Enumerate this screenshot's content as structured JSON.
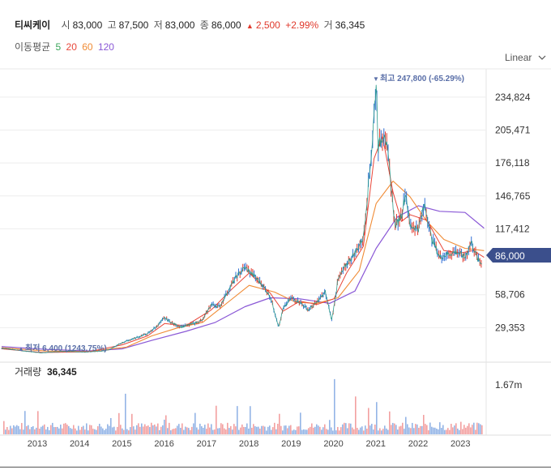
{
  "header": {
    "name": "티씨케이",
    "open_label": "시",
    "open": "83,000",
    "high_label": "고",
    "high": "87,500",
    "low_label": "저",
    "low": "83,000",
    "close_label": "종",
    "close": "86,000",
    "change_arrow": "▲",
    "change": "2,500",
    "change_pct": "+2.99%",
    "volume_label": "거",
    "volume": "36,345",
    "ma_label": "이동평균",
    "ma": [
      {
        "period": "5",
        "color": "#3aa55a"
      },
      {
        "period": "20",
        "color": "#e8473a"
      },
      {
        "period": "60",
        "color": "#f08b35"
      },
      {
        "period": "120",
        "color": "#8a58d6"
      }
    ],
    "scale_mode": "Linear",
    "scale_icon": "chevron-down-icon"
  },
  "chart_data": {
    "type": "candlestick-line",
    "price_axis": {
      "ticks": [
        234824,
        205471,
        176118,
        146765,
        117412,
        58706,
        29353
      ],
      "ylim": [
        0,
        260000
      ]
    },
    "current_price_label": "86,000",
    "current_price": 86000,
    "max_marker": {
      "arrow": "▼",
      "text": "최고 247,800 (-65.29%)",
      "value": 247800,
      "x": 2021.3
    },
    "min_marker": {
      "arrow": "▲",
      "text": "최저 6,400 (1243.75%)",
      "value": 6400,
      "x": 2013.4
    },
    "x_range": [
      2012.45,
      2023.9
    ],
    "x_ticks": [
      "2013",
      "2014",
      "2015",
      "2016",
      "2017",
      "2018",
      "2019",
      "2020",
      "2021",
      "2022",
      "2023"
    ],
    "price_series": [
      [
        2012.45,
        11000
      ],
      [
        2012.7,
        10000
      ],
      [
        2013.0,
        8500
      ],
      [
        2013.4,
        6800
      ],
      [
        2013.7,
        7800
      ],
      [
        2014.0,
        8200
      ],
      [
        2014.4,
        7600
      ],
      [
        2014.8,
        8400
      ],
      [
        2015.0,
        9800
      ],
      [
        2015.3,
        16000
      ],
      [
        2015.6,
        20000
      ],
      [
        2015.9,
        24000
      ],
      [
        2016.1,
        30000
      ],
      [
        2016.3,
        38000
      ],
      [
        2016.5,
        33000
      ],
      [
        2016.7,
        30000
      ],
      [
        2016.9,
        32000
      ],
      [
        2017.2,
        36000
      ],
      [
        2017.4,
        50000
      ],
      [
        2017.6,
        48000
      ],
      [
        2017.8,
        62000
      ],
      [
        2018.0,
        75000
      ],
      [
        2018.2,
        83000
      ],
      [
        2018.4,
        76000
      ],
      [
        2018.6,
        68000
      ],
      [
        2018.8,
        57000
      ],
      [
        2019.0,
        30000
      ],
      [
        2019.1,
        46000
      ],
      [
        2019.3,
        56000
      ],
      [
        2019.5,
        52000
      ],
      [
        2019.7,
        45000
      ],
      [
        2019.9,
        52000
      ],
      [
        2020.1,
        61000
      ],
      [
        2020.25,
        36000
      ],
      [
        2020.4,
        72000
      ],
      [
        2020.6,
        86000
      ],
      [
        2020.8,
        96000
      ],
      [
        2021.0,
        110000
      ],
      [
        2021.1,
        150000
      ],
      [
        2021.2,
        190000
      ],
      [
        2021.3,
        247800
      ],
      [
        2021.35,
        190000
      ],
      [
        2021.5,
        205000
      ],
      [
        2021.6,
        175000
      ],
      [
        2021.75,
        120000
      ],
      [
        2021.9,
        130000
      ],
      [
        2022.0,
        150000
      ],
      [
        2022.1,
        120000
      ],
      [
        2022.3,
        118000
      ],
      [
        2022.45,
        140000
      ],
      [
        2022.6,
        110000
      ],
      [
        2022.8,
        92000
      ],
      [
        2023.0,
        95000
      ],
      [
        2023.2,
        97000
      ],
      [
        2023.4,
        92000
      ],
      [
        2023.55,
        106000
      ],
      [
        2023.7,
        90000
      ],
      [
        2023.8,
        86000
      ]
    ],
    "ma20_series": [
      [
        2012.45,
        10500
      ],
      [
        2013.4,
        7200
      ],
      [
        2014.5,
        7800
      ],
      [
        2015.3,
        14000
      ],
      [
        2015.9,
        22000
      ],
      [
        2016.3,
        33000
      ],
      [
        2016.8,
        31000
      ],
      [
        2017.4,
        45000
      ],
      [
        2017.9,
        64000
      ],
      [
        2018.3,
        78000
      ],
      [
        2018.8,
        60000
      ],
      [
        2019.1,
        44000
      ],
      [
        2019.5,
        53000
      ],
      [
        2019.9,
        50000
      ],
      [
        2020.3,
        55000
      ],
      [
        2020.6,
        78000
      ],
      [
        2021.0,
        102000
      ],
      [
        2021.25,
        180000
      ],
      [
        2021.45,
        200000
      ],
      [
        2021.7,
        150000
      ],
      [
        2021.9,
        124000
      ],
      [
        2022.1,
        130000
      ],
      [
        2022.5,
        125000
      ],
      [
        2022.9,
        98000
      ],
      [
        2023.3,
        96000
      ],
      [
        2023.6,
        98000
      ],
      [
        2023.85,
        92000
      ]
    ],
    "ma60_series": [
      [
        2012.45,
        11500
      ],
      [
        2013.5,
        8500
      ],
      [
        2014.5,
        8000
      ],
      [
        2015.4,
        12000
      ],
      [
        2016.0,
        22000
      ],
      [
        2016.6,
        29000
      ],
      [
        2017.2,
        34000
      ],
      [
        2017.8,
        52000
      ],
      [
        2018.3,
        67000
      ],
      [
        2018.9,
        61000
      ],
      [
        2019.4,
        52000
      ],
      [
        2019.9,
        51000
      ],
      [
        2020.4,
        56000
      ],
      [
        2020.9,
        80000
      ],
      [
        2021.3,
        140000
      ],
      [
        2021.7,
        160000
      ],
      [
        2022.1,
        146000
      ],
      [
        2022.5,
        124000
      ],
      [
        2022.9,
        108000
      ],
      [
        2023.4,
        100000
      ],
      [
        2023.85,
        98000
      ]
    ],
    "ma120_series": [
      [
        2012.45,
        12500
      ],
      [
        2013.5,
        10000
      ],
      [
        2014.5,
        8600
      ],
      [
        2015.3,
        10500
      ],
      [
        2016.0,
        18000
      ],
      [
        2016.8,
        26000
      ],
      [
        2017.5,
        34000
      ],
      [
        2018.2,
        48000
      ],
      [
        2018.8,
        56000
      ],
      [
        2019.5,
        55000
      ],
      [
        2020.2,
        51000
      ],
      [
        2020.8,
        62000
      ],
      [
        2021.3,
        100000
      ],
      [
        2021.8,
        128000
      ],
      [
        2022.3,
        138000
      ],
      [
        2022.8,
        133000
      ],
      [
        2023.4,
        132000
      ],
      [
        2023.85,
        118000
      ]
    ],
    "volume_pane": {
      "label": "거래량",
      "value": "36,345",
      "axis_tick_label": "1.67m",
      "axis_tick_value": 1670000,
      "ylim": [
        0,
        2300000
      ]
    },
    "volume_spikes": [
      [
        2012.5,
        700000
      ],
      [
        2013.0,
        1400000
      ],
      [
        2013.3,
        1000000
      ],
      [
        2015.0,
        1100000
      ],
      [
        2015.2,
        900000
      ],
      [
        2015.35,
        2000000
      ],
      [
        2015.5,
        1200000
      ],
      [
        2016.3,
        1500000
      ],
      [
        2017.0,
        900000
      ],
      [
        2017.5,
        1100000
      ],
      [
        2018.0,
        1000000
      ],
      [
        2018.3,
        1300000
      ],
      [
        2019.0,
        700000
      ],
      [
        2019.5,
        800000
      ],
      [
        2020.2,
        900000
      ],
      [
        2020.3,
        1800000
      ],
      [
        2020.8,
        1300000
      ],
      [
        2021.1,
        1000000
      ],
      [
        2021.3,
        1200000
      ],
      [
        2021.6,
        800000
      ],
      [
        2022.0,
        1100000
      ],
      [
        2022.4,
        800000
      ],
      [
        2022.8,
        600000
      ],
      [
        2023.3,
        700000
      ],
      [
        2023.7,
        500000
      ]
    ]
  }
}
